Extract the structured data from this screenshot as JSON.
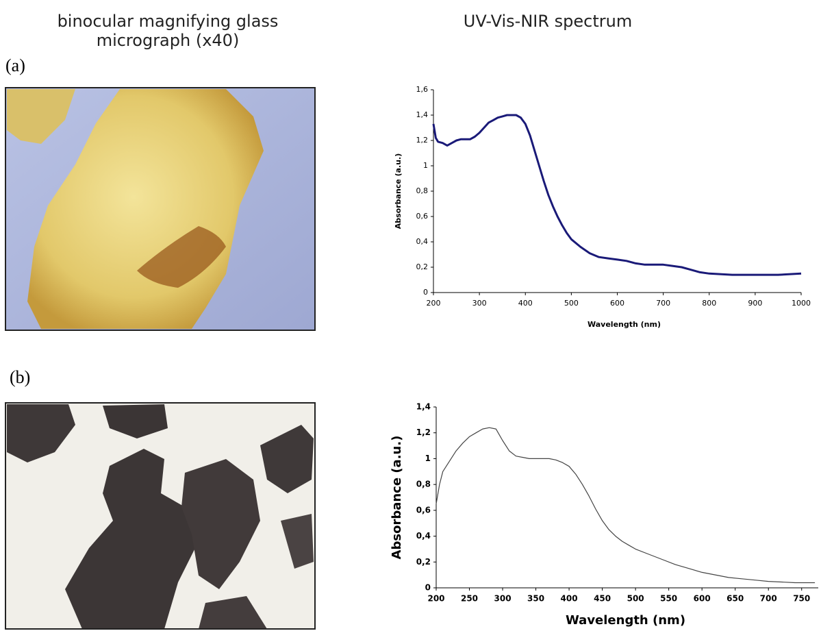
{
  "micrograph_title": [
    "binocular magnifying glass",
    "micrograph (x40)"
  ],
  "spectrum_title": "UV-Vis-NIR spectrum",
  "panel_labels": [
    "(a)",
    "(b)"
  ],
  "chart_data": [
    {
      "type": "line",
      "x_label": "Wavelength (nm)",
      "y_label": "Absorbance (a.u.)",
      "color": "#1a1a78",
      "x": [
        200,
        205,
        210,
        220,
        230,
        240,
        250,
        260,
        270,
        280,
        290,
        300,
        310,
        320,
        330,
        340,
        350,
        360,
        370,
        380,
        390,
        400,
        410,
        420,
        430,
        440,
        450,
        460,
        470,
        480,
        490,
        500,
        520,
        540,
        560,
        580,
        600,
        620,
        640,
        660,
        680,
        700,
        720,
        740,
        760,
        780,
        800,
        850,
        900,
        950,
        1000
      ],
      "values": [
        1.33,
        1.22,
        1.19,
        1.18,
        1.16,
        1.18,
        1.2,
        1.21,
        1.21,
        1.21,
        1.23,
        1.26,
        1.3,
        1.34,
        1.36,
        1.38,
        1.39,
        1.4,
        1.4,
        1.4,
        1.38,
        1.33,
        1.24,
        1.12,
        1.0,
        0.88,
        0.77,
        0.68,
        0.6,
        0.53,
        0.47,
        0.42,
        0.36,
        0.31,
        0.28,
        0.27,
        0.26,
        0.25,
        0.23,
        0.22,
        0.22,
        0.22,
        0.21,
        0.2,
        0.18,
        0.16,
        0.15,
        0.14,
        0.14,
        0.14,
        0.15
      ],
      "xlim": [
        200,
        1000
      ],
      "xticks": [
        200,
        300,
        400,
        500,
        600,
        700,
        800,
        900,
        1000
      ],
      "ylim": [
        0,
        1.6
      ],
      "yticks": [
        0,
        {
          "value": 0.2,
          "label": "0,2"
        },
        {
          "value": 0.4,
          "label": "0,4"
        },
        {
          "value": 0.6,
          "label": "0,6"
        },
        {
          "value": 0.8,
          "label": "0,8"
        },
        1,
        {
          "value": 1.2,
          "label": "1,2"
        },
        {
          "value": 1.4,
          "label": "1,4"
        },
        {
          "value": 1.6,
          "label": "1,6"
        }
      ],
      "grid": false
    },
    {
      "type": "line",
      "x_label": "Wavelength (nm)",
      "y_label": "Absorbance (a.u.)",
      "color": "#444444",
      "x": [
        200,
        205,
        210,
        220,
        230,
        240,
        250,
        260,
        270,
        280,
        290,
        300,
        310,
        320,
        330,
        340,
        350,
        360,
        370,
        380,
        390,
        400,
        410,
        420,
        430,
        440,
        450,
        460,
        470,
        480,
        490,
        500,
        520,
        540,
        560,
        580,
        600,
        620,
        640,
        660,
        680,
        700,
        720,
        740,
        760,
        770
      ],
      "values": [
        0.65,
        0.8,
        0.9,
        0.98,
        1.06,
        1.12,
        1.17,
        1.2,
        1.23,
        1.24,
        1.23,
        1.14,
        1.06,
        1.02,
        1.01,
        1.0,
        1.0,
        1.0,
        1.0,
        0.99,
        0.97,
        0.94,
        0.88,
        0.8,
        0.71,
        0.61,
        0.52,
        0.45,
        0.4,
        0.36,
        0.33,
        0.3,
        0.26,
        0.22,
        0.18,
        0.15,
        0.12,
        0.1,
        0.08,
        0.07,
        0.06,
        0.05,
        0.045,
        0.04,
        0.04,
        0.04
      ],
      "xlim": [
        200,
        775
      ],
      "xticks": [
        200,
        250,
        300,
        350,
        400,
        450,
        500,
        550,
        600,
        650,
        700,
        750
      ],
      "ylim": [
        0,
        1.4
      ],
      "yticks": [
        0,
        {
          "value": 0.2,
          "label": "0,2"
        },
        {
          "value": 0.4,
          "label": "0,4"
        },
        {
          "value": 0.6,
          "label": "0,6"
        },
        {
          "value": 0.8,
          "label": "0,8"
        },
        1,
        {
          "value": 1.2,
          "label": "1,2"
        },
        {
          "value": 1.4,
          "label": "1,4"
        }
      ],
      "grid": false
    }
  ]
}
